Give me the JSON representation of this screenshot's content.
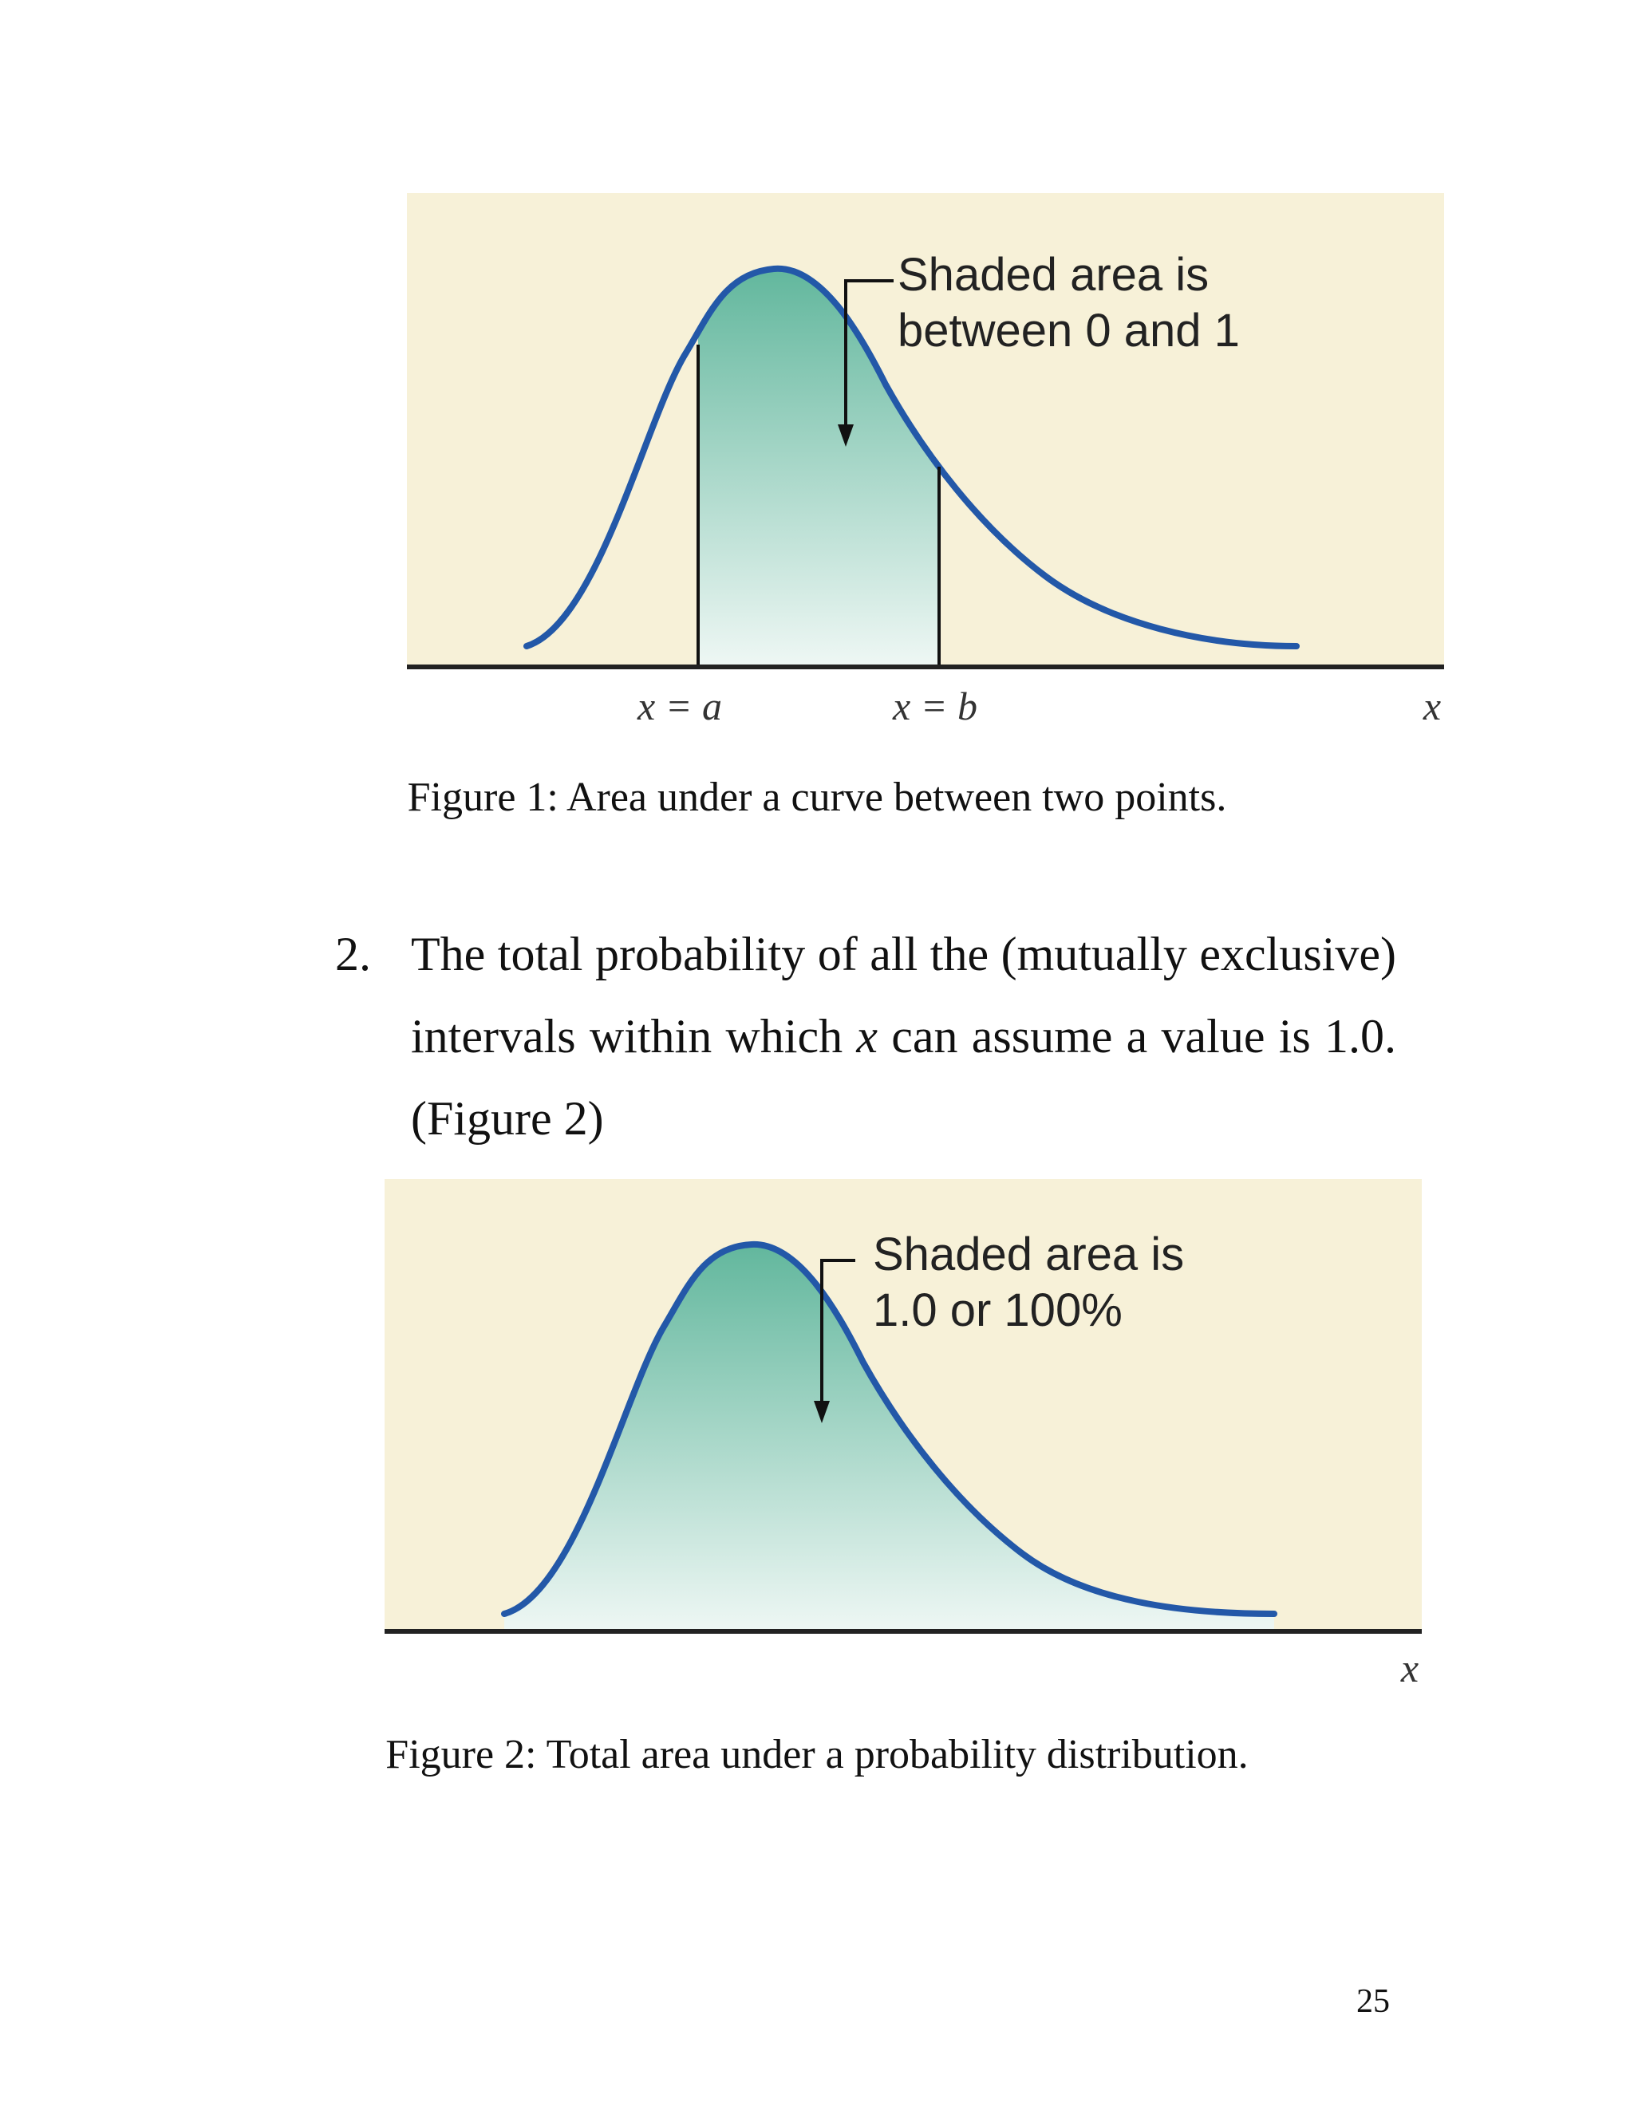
{
  "figure1": {
    "annotation": [
      "Shaded area is",
      "between 0 and 1"
    ],
    "labels": {
      "a": "x = a",
      "b": "x = b",
      "axis": "x"
    },
    "caption": "Figure 1: Area under a curve between two points."
  },
  "list_item": {
    "number": "2.",
    "text_before": "The total probability of all the (mutually exclusive) intervals within which ",
    "variable": "x",
    "text_after": " can assume a value is 1.0. (Figure 2)"
  },
  "figure2": {
    "annotation": [
      "Shaded area is",
      "1.0 or 100%"
    ],
    "labels": {
      "axis": "x"
    },
    "caption": "Figure 2: Total area under a probability distribution."
  },
  "page_number": "25",
  "colors": {
    "panel": "#f7f1d8",
    "curve": "#2358a8",
    "fill_top": "#62b79d",
    "fill_bottom": "#eef7f4"
  }
}
